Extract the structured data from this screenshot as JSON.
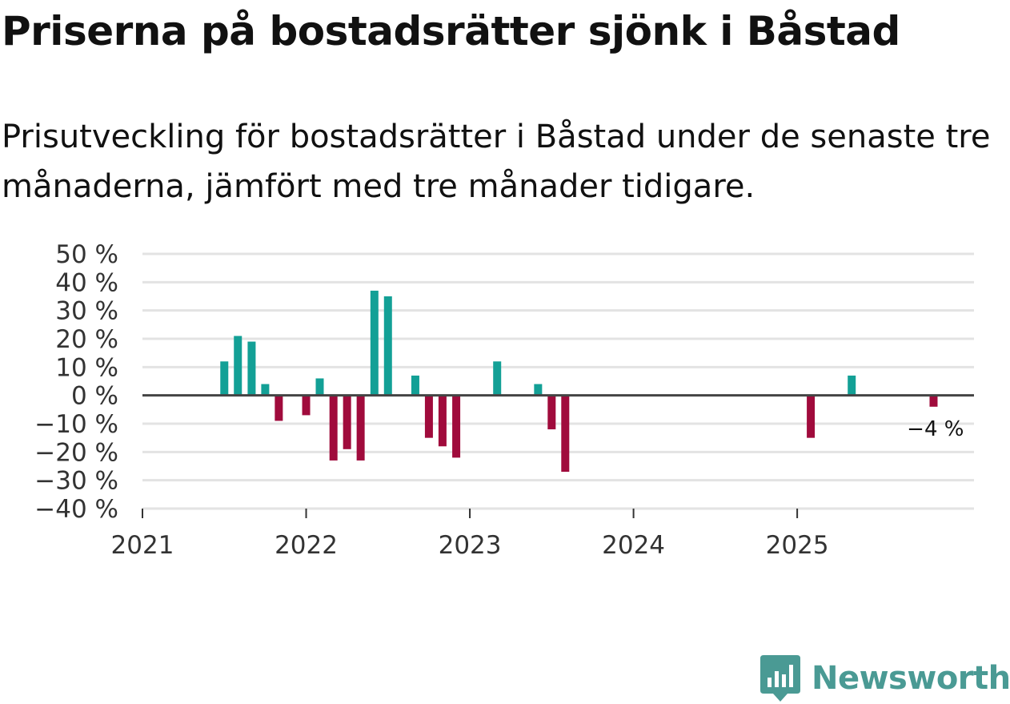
{
  "title": "Priserna på bostadsrätter sjönk i Båstad",
  "subtitle": "Prisutveckling för bostadsrätter i Båstad under de senaste tre månaderna, jämfört med tre månader tidigare.",
  "brand": {
    "name": "Newsworthy",
    "icon": "newsworthy-logo-icon"
  },
  "colors": {
    "positive": "#13a096",
    "negative": "#a00b3c",
    "zero_line": "#444444",
    "grid": "#e3e3e3",
    "brand": "#4a9a94"
  },
  "chart_data": {
    "type": "bar",
    "xlabel": "",
    "ylabel": "",
    "ylim": [
      -40,
      50
    ],
    "xlim": [
      2021.0,
      2026.08
    ],
    "yticks": [
      50,
      40,
      30,
      20,
      10,
      0,
      -10,
      -20,
      -30,
      -40
    ],
    "ytick_labels": [
      "50 %",
      "40 %",
      "30 %",
      "20 %",
      "10 %",
      "0 %",
      "−10 %",
      "−20 %",
      "−30 %",
      "−40 %"
    ],
    "xticks": [
      2021,
      2022,
      2023,
      2024,
      2025
    ],
    "xtick_labels": [
      "2021",
      "2022",
      "2023",
      "2024",
      "2025"
    ],
    "grid": true,
    "x": [
      2021.5,
      2021.583,
      2021.667,
      2021.75,
      2021.833,
      2022.0,
      2022.083,
      2022.167,
      2022.25,
      2022.333,
      2022.417,
      2022.5,
      2022.667,
      2022.75,
      2022.833,
      2022.917,
      2023.167,
      2023.417,
      2023.5,
      2023.583,
      2025.083,
      2025.333,
      2025.833
    ],
    "values": [
      12,
      21,
      19,
      4,
      -9,
      -7,
      6,
      -23,
      -19,
      -23,
      37,
      35,
      7,
      -15,
      -18,
      -22,
      12,
      4,
      -12,
      -27,
      -15,
      7,
      -4
    ],
    "annotation": {
      "text": "−4 %",
      "index": 22
    }
  }
}
